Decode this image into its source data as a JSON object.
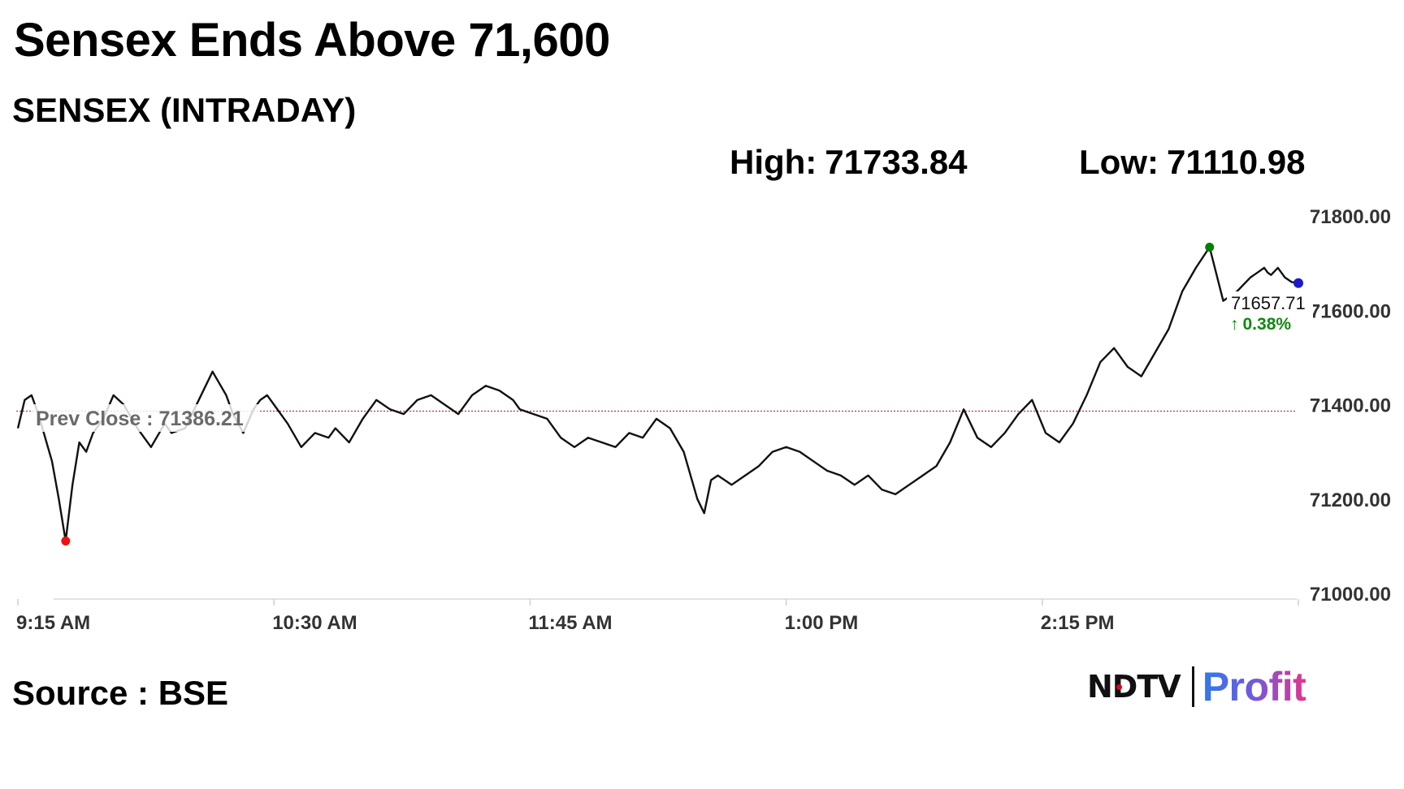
{
  "title": "Sensex Ends Above 71,600",
  "subtitle": "SENSEX (INTRADAY)",
  "stats": {
    "high_label": "High:",
    "high_value": "71733.84",
    "low_label": "Low:",
    "low_value": "71110.98"
  },
  "source": "Source : BSE",
  "brand": {
    "left": "NDTV",
    "right": "Profit"
  },
  "chart_data": {
    "type": "line",
    "series": [
      {
        "x": [
          "9:15",
          "9:17",
          "9:19",
          "9:21",
          "9:23",
          "9:25",
          "9:27",
          "9:29",
          "9:31",
          "9:33",
          "9:35",
          "9:37",
          "9:40",
          "9:43",
          "9:46",
          "9:50",
          "9:54",
          "9:58",
          "10:00",
          "10:04",
          "10:08",
          "10:12",
          "10:16",
          "10:18",
          "10:21",
          "10:24",
          "10:26",
          "10:28",
          "10:30",
          "10:34",
          "10:38",
          "10:42",
          "10:46",
          "10:48",
          "10:52",
          "10:56",
          "11:00",
          "11:04",
          "11:08",
          "11:12",
          "11:16",
          "11:20",
          "11:24",
          "11:28",
          "11:32",
          "11:36",
          "11:40",
          "11:42",
          "11:46",
          "11:50",
          "11:54",
          "11:58",
          "12:02",
          "12:06",
          "12:10",
          "12:14",
          "12:18",
          "12:22",
          "12:26",
          "12:30",
          "12:34",
          "12:36",
          "12:38",
          "12:40",
          "12:44",
          "12:48",
          "12:52",
          "12:56",
          "13:00",
          "13:04",
          "13:08",
          "13:12",
          "13:16",
          "13:20",
          "13:24",
          "13:28",
          "13:32",
          "13:36",
          "13:40",
          "13:44",
          "13:48",
          "13:52",
          "13:56",
          "14:00",
          "14:04",
          "14:08",
          "14:12",
          "14:16",
          "14:20",
          "14:24",
          "14:28",
          "14:32",
          "14:36",
          "14:40",
          "14:44",
          "14:48",
          "14:52",
          "14:56",
          "15:00",
          "15:04",
          "15:08",
          "15:12",
          "15:16",
          "15:18",
          "15:20",
          "15:21",
          "15:22",
          "15:24",
          "15:26",
          "15:28",
          "15:30"
        ],
        "y": [
          71350,
          71410,
          71420,
          71380,
          71330,
          71280,
          71200,
          71110.98,
          71230,
          71320,
          71300,
          71340,
          71370,
          71420,
          71400,
          71350,
          71310,
          71360,
          71340,
          71350,
          71410,
          71470,
          71420,
          71380,
          71340,
          71390,
          71410,
          71420,
          71400,
          71360,
          71310,
          71340,
          71330,
          71350,
          71320,
          71370,
          71410,
          71390,
          71380,
          71410,
          71420,
          71400,
          71380,
          71420,
          71440,
          71430,
          71410,
          71390,
          71380,
          71370,
          71330,
          71310,
          71330,
          71320,
          71310,
          71340,
          71330,
          71370,
          71350,
          71300,
          71200,
          71170,
          71240,
          71250,
          71230,
          71250,
          71270,
          71300,
          71310,
          71300,
          71280,
          71260,
          71250,
          71230,
          71250,
          71220,
          71210,
          71230,
          71250,
          71270,
          71320,
          71390,
          71330,
          71310,
          71340,
          71380,
          71410,
          71340,
          71320,
          71360,
          71420,
          71490,
          71520,
          71480,
          71460,
          71510,
          71560,
          71640,
          71690,
          71733.84,
          71620,
          71640,
          71670,
          71680,
          71690,
          71680,
          71675,
          71690,
          71670,
          71660,
          71657.71
        ]
      }
    ],
    "ylim": [
      71000,
      71800
    ],
    "yticks": [
      "71800.00",
      "71600.00",
      "71400.00",
      "71200.00",
      "71000.00"
    ],
    "xticks": [
      "9:15 AM",
      "10:30 AM",
      "11:45 AM",
      "1:00 PM",
      "2:15 PM"
    ],
    "prev_close": 71386.21,
    "prev_close_label": "Prev Close : 71386.21",
    "last_value": "71657.71",
    "change_pct": "0.38%",
    "change_arrow": "↑",
    "high_marker_color": "#008000",
    "low_marker_color": "#ee1111",
    "last_marker_color": "#1a1acc",
    "prev_close_line_color": "#b03a3a",
    "line_color": "#111111",
    "change_color": "#118811",
    "grid": false
  }
}
